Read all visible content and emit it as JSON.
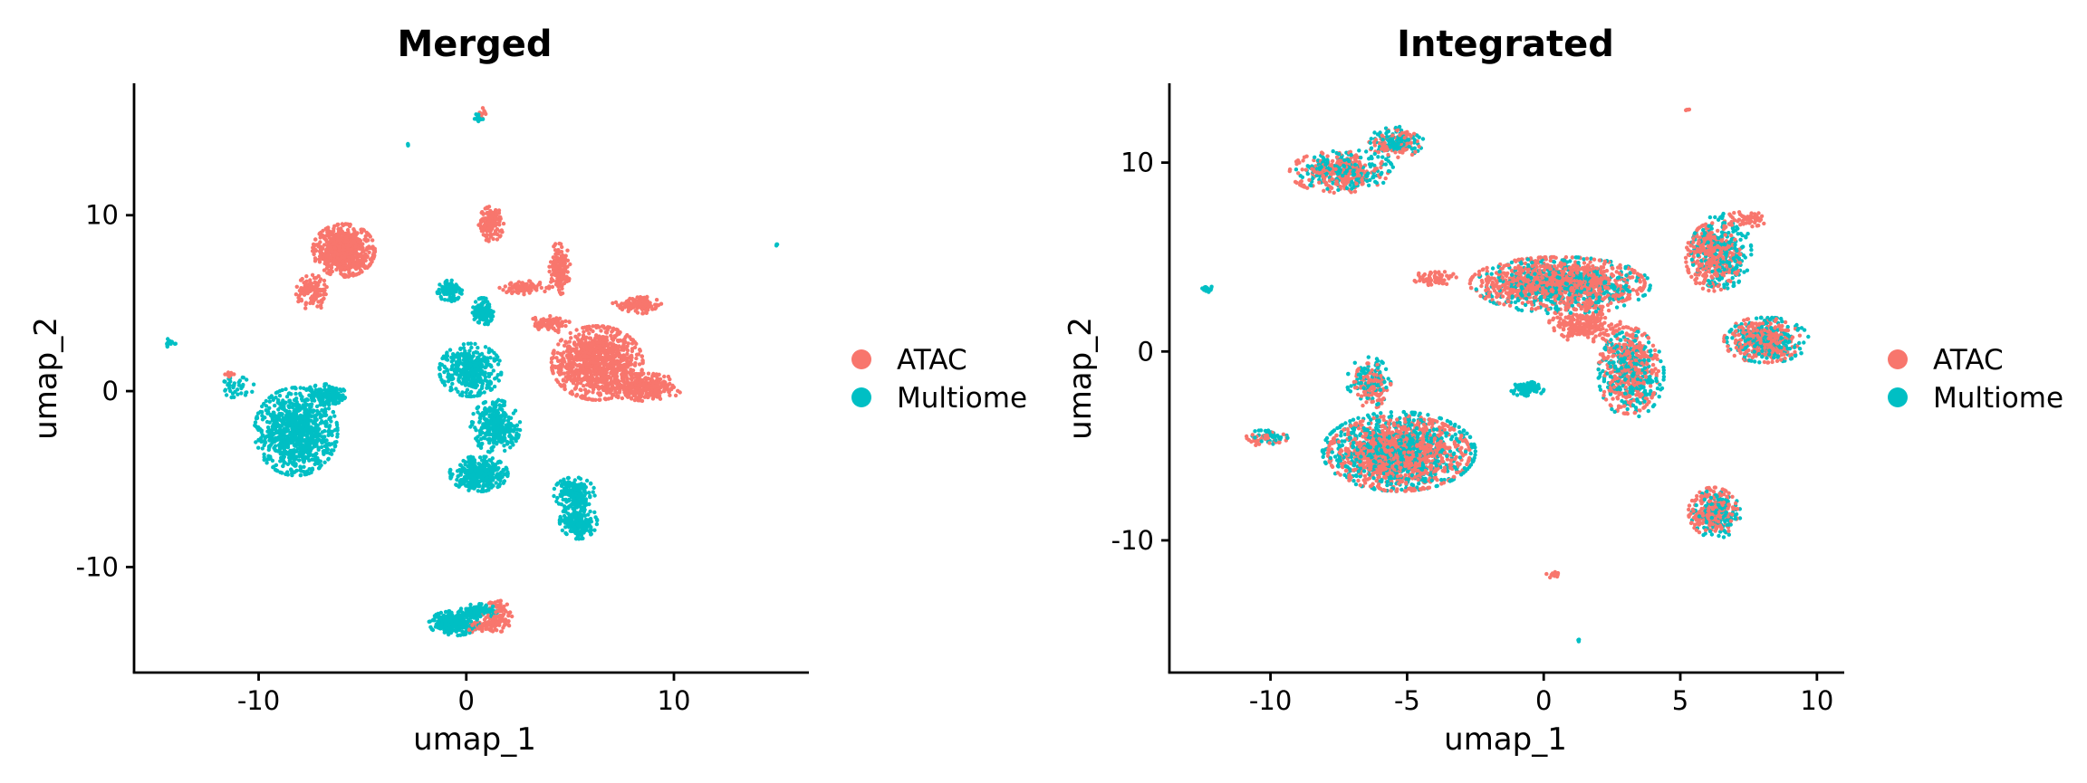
{
  "colors": {
    "ATAC": "#F8766D",
    "Multiome": "#00BFC4"
  },
  "chart_data": [
    {
      "type": "scatter",
      "title": "Merged",
      "xlabel": "umap_1",
      "ylabel": "umap_2",
      "xlim": [
        -16,
        16.5
      ],
      "ylim": [
        -16,
        17.5
      ],
      "xticks": [
        -10,
        0,
        10
      ],
      "xtick_labels": [
        "-10",
        "0",
        "10"
      ],
      "yticks": [
        -10,
        0,
        10
      ],
      "ytick_labels": [
        "-10",
        "0",
        "10"
      ],
      "legend": {
        "position": "right",
        "entries": [
          "ATAC",
          "Multiome"
        ]
      },
      "series": [
        {
          "name": "ATAC",
          "clusters": [
            {
              "cx": -5.9,
              "cy": 8.0,
              "rx": 1.5,
              "ry": 1.5,
              "n": 700
            },
            {
              "cx": -7.4,
              "cy": 5.6,
              "rx": 0.8,
              "ry": 1.0,
              "n": 120
            },
            {
              "cx": 1.2,
              "cy": 9.5,
              "rx": 0.6,
              "ry": 1.0,
              "n": 150
            },
            {
              "cx": 4.5,
              "cy": 7.0,
              "rx": 0.5,
              "ry": 1.5,
              "n": 150
            },
            {
              "cx": 6.3,
              "cy": 1.6,
              "rx": 2.2,
              "ry": 2.1,
              "n": 1000
            },
            {
              "cx": 8.6,
              "cy": 0.2,
              "rx": 1.8,
              "ry": 0.8,
              "n": 300
            },
            {
              "cx": 8.2,
              "cy": 4.9,
              "rx": 1.2,
              "ry": 0.5,
              "n": 120
            },
            {
              "cx": 2.8,
              "cy": 5.9,
              "rx": 1.2,
              "ry": 0.4,
              "n": 80
            },
            {
              "cx": 4.0,
              "cy": 3.8,
              "rx": 1.0,
              "ry": 0.5,
              "n": 80
            },
            {
              "cx": 1.5,
              "cy": -12.8,
              "rx": 0.7,
              "ry": 0.9,
              "n": 120
            },
            {
              "cx": 0.4,
              "cy": -13.4,
              "rx": 0.6,
              "ry": 0.3,
              "n": 40
            },
            {
              "cx": 0.8,
              "cy": 15.8,
              "rx": 0.2,
              "ry": 0.3,
              "n": 10
            },
            {
              "cx": -11.4,
              "cy": 1.0,
              "rx": 0.3,
              "ry": 0.2,
              "n": 8
            }
          ]
        },
        {
          "name": "Multiome",
          "clusters": [
            {
              "cx": -8.2,
              "cy": -2.3,
              "rx": 2.0,
              "ry": 2.5,
              "n": 900
            },
            {
              "cx": -6.8,
              "cy": -0.2,
              "rx": 1.0,
              "ry": 0.6,
              "n": 150
            },
            {
              "cx": -11.0,
              "cy": 0.2,
              "rx": 0.8,
              "ry": 0.6,
              "n": 40
            },
            {
              "cx": 0.2,
              "cy": 1.2,
              "rx": 1.5,
              "ry": 1.5,
              "n": 400
            },
            {
              "cx": 1.4,
              "cy": -2.0,
              "rx": 1.2,
              "ry": 1.5,
              "n": 350
            },
            {
              "cx": 0.6,
              "cy": -4.7,
              "rx": 1.4,
              "ry": 1.0,
              "n": 350
            },
            {
              "cx": 0.8,
              "cy": 4.5,
              "rx": 0.5,
              "ry": 0.8,
              "n": 120
            },
            {
              "cx": -0.8,
              "cy": 5.7,
              "rx": 0.6,
              "ry": 0.6,
              "n": 80
            },
            {
              "cx": 5.2,
              "cy": -5.8,
              "rx": 1.0,
              "ry": 0.9,
              "n": 200
            },
            {
              "cx": 5.4,
              "cy": -7.4,
              "rx": 0.9,
              "ry": 1.0,
              "n": 200
            },
            {
              "cx": -0.6,
              "cy": -13.2,
              "rx": 1.2,
              "ry": 0.7,
              "n": 250
            },
            {
              "cx": 0.6,
              "cy": -12.5,
              "rx": 0.9,
              "ry": 0.4,
              "n": 120
            },
            {
              "cx": 0.6,
              "cy": 15.5,
              "rx": 0.2,
              "ry": 0.3,
              "n": 15
            },
            {
              "cx": -14.3,
              "cy": 2.7,
              "rx": 0.3,
              "ry": 0.3,
              "n": 15
            },
            {
              "cx": -2.8,
              "cy": 14.0,
              "rx": 0.1,
              "ry": 0.1,
              "n": 3
            },
            {
              "cx": 15.0,
              "cy": 8.3,
              "rx": 0.1,
              "ry": 0.1,
              "n": 3
            }
          ]
        }
      ]
    },
    {
      "type": "scatter",
      "title": "Integrated",
      "xlabel": "umap_1",
      "ylabel": "umap_2",
      "xlim": [
        -13.7,
        11
      ],
      "ylim": [
        -17,
        14.2
      ],
      "xticks": [
        -10,
        -5,
        0,
        5,
        10
      ],
      "xtick_labels": [
        "-10",
        "-5",
        "0",
        "5",
        "10"
      ],
      "yticks": [
        -10,
        0,
        10
      ],
      "ytick_labels": [
        "-10",
        "0",
        "10"
      ],
      "legend": {
        "position": "right",
        "entries": [
          "ATAC",
          "Multiome"
        ]
      },
      "series": [
        {
          "name": "ATAC",
          "clusters": [
            {
              "cx": -7.5,
              "cy": 9.5,
              "rx": 1.8,
              "ry": 1.1,
              "n": 250
            },
            {
              "cx": -5.5,
              "cy": 11.0,
              "rx": 1.0,
              "ry": 0.8,
              "n": 100
            },
            {
              "cx": -5.3,
              "cy": -5.4,
              "rx": 2.6,
              "ry": 2.0,
              "n": 1100
            },
            {
              "cx": -6.3,
              "cy": -1.8,
              "rx": 0.7,
              "ry": 1.2,
              "n": 120
            },
            {
              "cx": 0.5,
              "cy": 3.6,
              "rx": 3.2,
              "ry": 1.4,
              "n": 1000
            },
            {
              "cx": 1.5,
              "cy": 1.5,
              "rx": 1.3,
              "ry": 1.0,
              "n": 250
            },
            {
              "cx": 3.1,
              "cy": -1.0,
              "rx": 1.1,
              "ry": 2.3,
              "n": 400
            },
            {
              "cx": 6.2,
              "cy": 5.0,
              "rx": 1.0,
              "ry": 1.8,
              "n": 350
            },
            {
              "cx": 8.0,
              "cy": 0.6,
              "rx": 1.4,
              "ry": 1.2,
              "n": 350
            },
            {
              "cx": 7.4,
              "cy": 7.0,
              "rx": 0.8,
              "ry": 0.4,
              "n": 60
            },
            {
              "cx": 6.2,
              "cy": -8.5,
              "rx": 0.9,
              "ry": 1.3,
              "n": 250
            },
            {
              "cx": -4.0,
              "cy": 3.9,
              "rx": 0.8,
              "ry": 0.4,
              "n": 60
            },
            {
              "cx": -10.2,
              "cy": -4.6,
              "rx": 0.8,
              "ry": 0.4,
              "n": 40
            },
            {
              "cx": 0.4,
              "cy": -11.8,
              "rx": 0.3,
              "ry": 0.2,
              "n": 12
            },
            {
              "cx": 5.3,
              "cy": 12.8,
              "rx": 0.1,
              "ry": 0.1,
              "n": 4
            }
          ]
        },
        {
          "name": "Multiome",
          "clusters": [
            {
              "cx": -7.3,
              "cy": 9.6,
              "rx": 1.8,
              "ry": 1.1,
              "n": 200
            },
            {
              "cx": -5.4,
              "cy": 11.1,
              "rx": 1.0,
              "ry": 0.8,
              "n": 120
            },
            {
              "cx": -5.3,
              "cy": -5.3,
              "rx": 2.8,
              "ry": 2.1,
              "n": 800
            },
            {
              "cx": -6.4,
              "cy": -1.6,
              "rx": 0.8,
              "ry": 1.3,
              "n": 100
            },
            {
              "cx": 0.7,
              "cy": 3.5,
              "rx": 3.2,
              "ry": 1.5,
              "n": 500
            },
            {
              "cx": 3.2,
              "cy": -1.2,
              "rx": 1.2,
              "ry": 2.3,
              "n": 300
            },
            {
              "cx": 6.5,
              "cy": 5.3,
              "rx": 1.1,
              "ry": 2.0,
              "n": 250
            },
            {
              "cx": 8.2,
              "cy": 0.6,
              "rx": 1.5,
              "ry": 1.2,
              "n": 250
            },
            {
              "cx": 6.3,
              "cy": -8.6,
              "rx": 0.9,
              "ry": 1.3,
              "n": 150
            },
            {
              "cx": -0.6,
              "cy": -2.0,
              "rx": 0.6,
              "ry": 0.4,
              "n": 80
            },
            {
              "cx": -12.3,
              "cy": 3.3,
              "rx": 0.2,
              "ry": 0.2,
              "n": 15
            },
            {
              "cx": -10.0,
              "cy": -4.5,
              "rx": 0.8,
              "ry": 0.4,
              "n": 40
            },
            {
              "cx": 1.3,
              "cy": -15.3,
              "rx": 0.1,
              "ry": 0.1,
              "n": 3
            }
          ]
        }
      ]
    }
  ]
}
